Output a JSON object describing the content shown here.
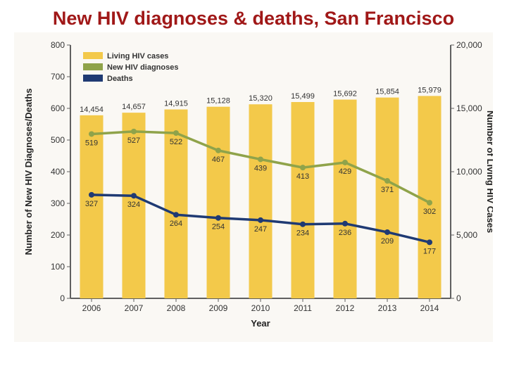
{
  "title": "New HIV diagnoses & deaths, San Francisco",
  "chart": {
    "type": "bar+line",
    "background_color": "#faf8f4",
    "plot_background": "#faf8f4",
    "frame_color": "#bfbfbf",
    "axis_line_color": "#606060",
    "grid_on": false,
    "font_family": "Arial",
    "label_fontsize": 13,
    "tick_fontsize": 12,
    "value_fontsize": 11,
    "legend": {
      "position": "top-left",
      "box_color": "none",
      "items": [
        {
          "label": "Living HIV cases",
          "color": "#f3c94a",
          "type": "swatch"
        },
        {
          "label": "New HIV diagnoses",
          "color": "#8fa34a",
          "type": "swatch"
        },
        {
          "label": "Deaths",
          "color": "#1f3a73",
          "type": "swatch"
        }
      ]
    },
    "x": {
      "label": "Year",
      "categories": [
        "2006",
        "2007",
        "2008",
        "2009",
        "2010",
        "2011",
        "2012",
        "2013",
        "2014"
      ]
    },
    "y_left": {
      "label": "Number of New HIV Diagnoses/Deaths",
      "min": 0,
      "max": 800,
      "step": 100,
      "text_color": "#333333"
    },
    "y_right": {
      "label": "Number of Living HIV Cases",
      "min": 0,
      "max": 20000,
      "step": 5000,
      "text_color": "#333333"
    },
    "bars": {
      "name": "Living HIV cases",
      "axis": "right",
      "values": [
        14454,
        14657,
        14915,
        15128,
        15320,
        15499,
        15692,
        15854,
        15979
      ],
      "color": "#f3c94a",
      "bar_width": 0.55,
      "value_labels_color": "#333333"
    },
    "line_diagnoses": {
      "name": "New HIV diagnoses",
      "axis": "left",
      "values": [
        519,
        527,
        522,
        467,
        439,
        413,
        429,
        371,
        302
      ],
      "color": "#8fa34a",
      "stroke_width": 3.5,
      "marker": "circle",
      "marker_size": 4,
      "value_labels_color": "#333333"
    },
    "line_deaths": {
      "name": "Deaths",
      "axis": "left",
      "values": [
        327,
        324,
        264,
        254,
        247,
        234,
        236,
        209,
        177
      ],
      "color": "#1f3a73",
      "stroke_width": 3.5,
      "marker": "circle",
      "marker_size": 4,
      "value_labels_color": "#333333"
    }
  }
}
